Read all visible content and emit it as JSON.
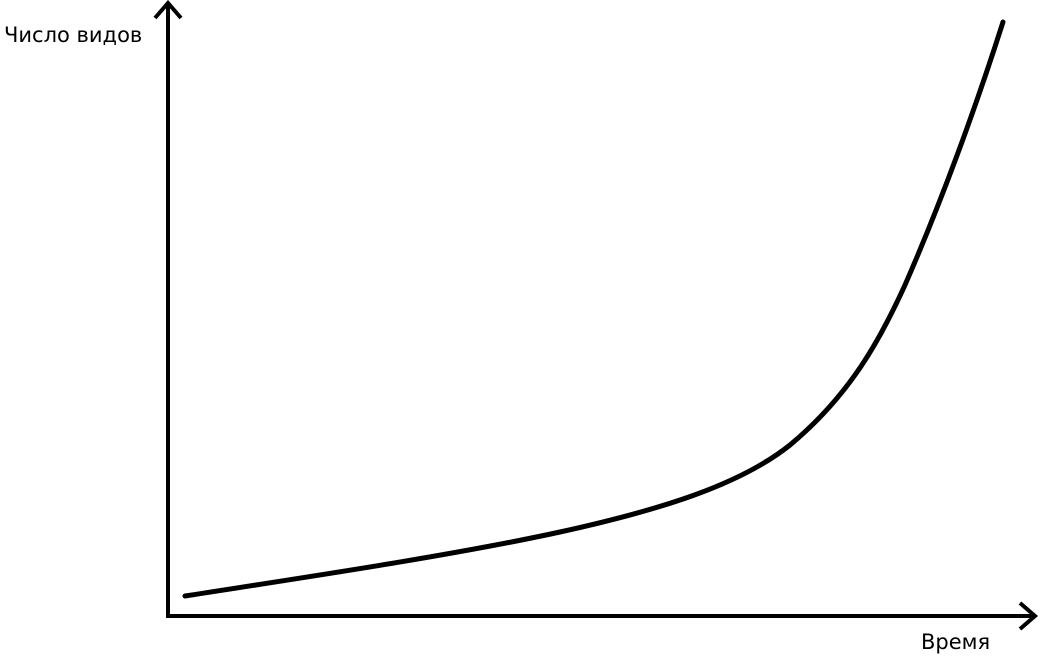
{
  "chart_data": {
    "type": "line",
    "title": "",
    "xlabel": "Время",
    "ylabel": "Число видов",
    "trend": "exponential growth",
    "grid": false,
    "legend": "none",
    "line_color": "#000000",
    "background": "#ffffff"
  }
}
